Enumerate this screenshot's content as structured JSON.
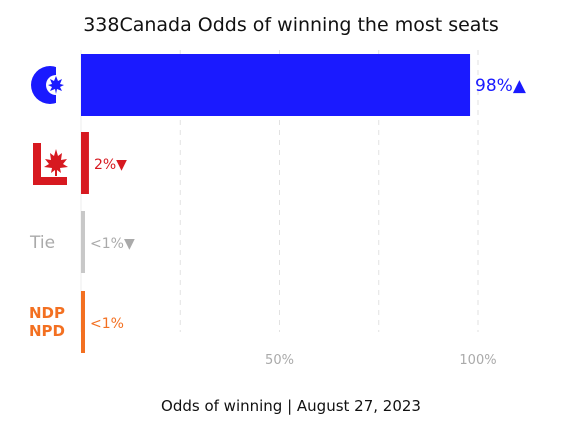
{
  "chart_data": {
    "type": "bar",
    "orientation": "horizontal",
    "title": "338Canada Odds of winning the most seats",
    "xlabel": "Odds of winning | August 27, 2023",
    "xlim": [
      0,
      100
    ],
    "x_ticks": [
      {
        "value": 50,
        "label": "50%"
      },
      {
        "value": 100,
        "label": "100%"
      }
    ],
    "grid": "vertical dashed",
    "categories": [
      "Conservative",
      "Liberal",
      "Tie",
      "NDP"
    ],
    "values": [
      98,
      2,
      0.5,
      0.5
    ],
    "value_labels": [
      "98%▲",
      "2%▼",
      "<1%▼",
      "<1%"
    ],
    "colors": [
      "#1a1aff",
      "#d71920",
      "#c8c8c8",
      "#f37021"
    ],
    "category_marks": [
      {
        "kind": "conservative-logo-icon"
      },
      {
        "kind": "liberal-logo-icon"
      },
      {
        "kind": "text",
        "text": "Tie"
      },
      {
        "kind": "ndp-logo-icon",
        "lines": [
          "NDP",
          "NPD"
        ]
      }
    ]
  }
}
